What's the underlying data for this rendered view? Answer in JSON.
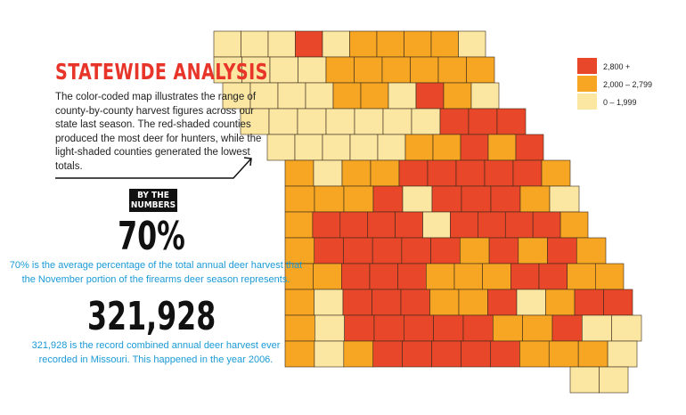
{
  "header": {
    "title": "STATEWIDE ANALYSIS",
    "description": "The color-coded map illustrates the range of county-by-county harvest figures across our state last season. The red-shaded counties produced the most deer for hunters, while the light-shaded counties generated the lowest totals."
  },
  "badge": "BY THE NUMBERS",
  "stats": [
    {
      "figure": "70%",
      "caption": "70% is the average percentage of the total annual deer harvest that the November portion of the firearms deer season represents."
    },
    {
      "figure": "321,928",
      "caption": "321,928 is the record combined annual deer harvest ever recorded in Missouri. This happened in the year 2006."
    }
  ],
  "legend": {
    "items": [
      {
        "label": "2,800 +",
        "color": "#e8472a"
      },
      {
        "label": "2,000 – 2,799",
        "color": "#f6a623"
      },
      {
        "label": "0 – 1,999",
        "color": "#fbe6a2"
      }
    ]
  }
}
